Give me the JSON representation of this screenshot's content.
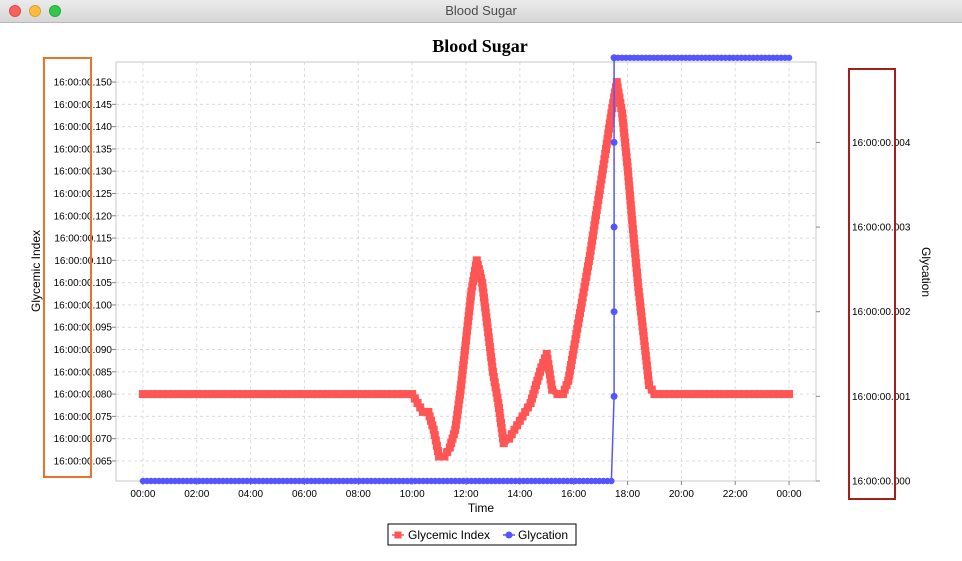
{
  "window": {
    "title": "Blood Sugar"
  },
  "colors": {
    "glycemic": "#ff5555",
    "glycation": "#5555ff",
    "left_highlight": "#e8732a",
    "right_highlight": "#a02020"
  },
  "chart_data": {
    "type": "line",
    "title": "Blood Sugar",
    "xlabel": "Time",
    "ylabel_left": "Glycemic Index",
    "ylabel_right": "Glycation",
    "x_ticks": [
      "00:00",
      "02:00",
      "04:00",
      "06:00",
      "08:00",
      "10:00",
      "12:00",
      "14:00",
      "16:00",
      "18:00",
      "20:00",
      "22:00",
      "00:00"
    ],
    "xlim_hours": [
      -1,
      25
    ],
    "y_left_ticks": [
      "16:00:00.065",
      "16:00:00.070",
      "16:00:00.075",
      "16:00:00.080",
      "16:00:00.085",
      "16:00:00.090",
      "16:00:00.095",
      "16:00:00.100",
      "16:00:00.105",
      "16:00:00.110",
      "16:00:00.115",
      "16:00:00.120",
      "16:00:00.125",
      "16:00:00.130",
      "16:00:00.135",
      "16:00:00.140",
      "16:00:00.145",
      "16:00:00.150"
    ],
    "y_left_range": [
      0.0605,
      0.1545
    ],
    "y_right_ticks": [
      "16:00:00.000",
      "16:00:00.001",
      "16:00:00.002",
      "16:00:00.003",
      "16:00:00.004"
    ],
    "y_right_range": [
      0,
      0.00495
    ],
    "grid": true,
    "legend_position": "bottom",
    "series": [
      {
        "name": "Glycemic Index",
        "axis": "left",
        "marker": "square",
        "x_hours": [
          0,
          10,
          10.2,
          10.4,
          10.6,
          10.8,
          11.0,
          11.2,
          11.4,
          11.6,
          11.8,
          12.0,
          12.2,
          12.4,
          12.6,
          12.8,
          13.0,
          13.2,
          13.4,
          13.6,
          13.8,
          14.0,
          14.2,
          14.4,
          14.6,
          14.8,
          15.0,
          15.2,
          15.4,
          15.6,
          15.8,
          16.0,
          16.2,
          16.4,
          16.6,
          16.8,
          17.0,
          17.2,
          17.4,
          17.6,
          17.8,
          18.0,
          18.2,
          18.4,
          18.6,
          18.8,
          19.0,
          24
        ],
        "values": [
          0.08,
          0.08,
          0.078,
          0.076,
          0.076,
          0.072,
          0.066,
          0.066,
          0.068,
          0.072,
          0.081,
          0.092,
          0.103,
          0.11,
          0.105,
          0.095,
          0.085,
          0.078,
          0.069,
          0.07,
          0.072,
          0.074,
          0.076,
          0.078,
          0.082,
          0.086,
          0.089,
          0.081,
          0.08,
          0.08,
          0.083,
          0.09,
          0.097,
          0.104,
          0.111,
          0.119,
          0.127,
          0.135,
          0.143,
          0.15,
          0.143,
          0.131,
          0.117,
          0.104,
          0.093,
          0.082,
          0.08,
          0.08
        ]
      },
      {
        "name": "Glycation",
        "axis": "right",
        "marker": "circle",
        "x_hours": [
          0,
          17.4,
          17.5,
          17.5,
          17.5,
          17.5,
          17.5,
          17.5,
          24
        ],
        "values": [
          0,
          0,
          0.001,
          0.002,
          0.003,
          0.004,
          0.005,
          0.005,
          0.005
        ]
      }
    ]
  }
}
